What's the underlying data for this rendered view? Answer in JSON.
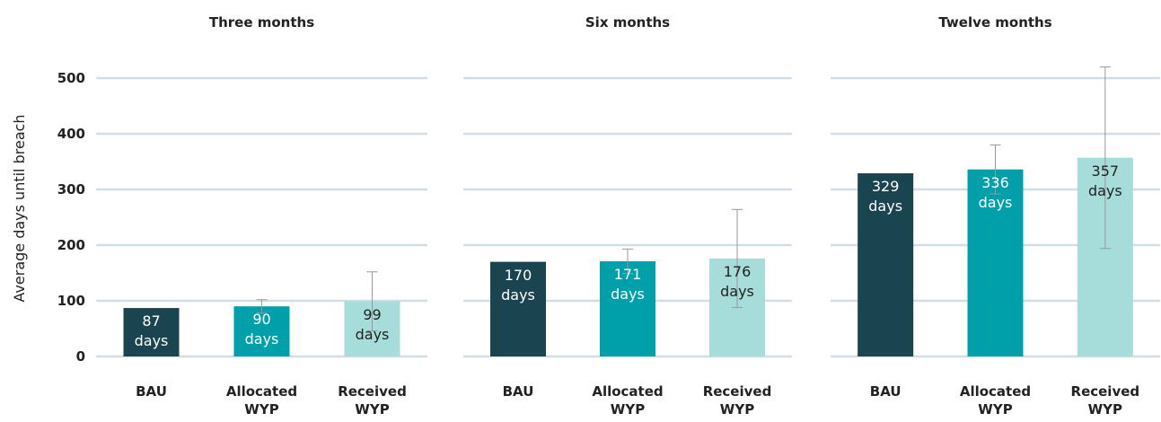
{
  "chart_data": [
    {
      "type": "bar",
      "title": "Three months",
      "ylabel": "Average days until breach",
      "categories": [
        "BAU",
        "Allocated WYP",
        "Received WYP"
      ],
      "values": [
        87,
        90,
        99
      ],
      "value_labels": [
        "87 days",
        "90 days",
        "99 days"
      ],
      "errors": [
        null,
        12,
        53
      ],
      "colors": [
        "#1b4451",
        "#00a0aa",
        "#a6dcd9"
      ],
      "ylim": [
        0,
        550
      ],
      "yticks": [
        0,
        100,
        200,
        300,
        400,
        500
      ],
      "grid": true
    },
    {
      "type": "bar",
      "title": "Six months",
      "categories": [
        "BAU",
        "Allocated WYP",
        "Received WYP"
      ],
      "values": [
        170,
        171,
        176
      ],
      "value_labels": [
        "170 days",
        "171 days",
        "176 days"
      ],
      "errors": [
        null,
        22,
        88
      ],
      "colors": [
        "#1b4451",
        "#00a0aa",
        "#a6dcd9"
      ],
      "ylim": [
        0,
        550
      ],
      "yticks": [
        0,
        100,
        200,
        300,
        400,
        500
      ],
      "grid": true
    },
    {
      "type": "bar",
      "title": "Twelve months",
      "categories": [
        "BAU",
        "Allocated WYP",
        "Received WYP"
      ],
      "values": [
        329,
        336,
        357
      ],
      "value_labels": [
        "329 days",
        "336 days",
        "357 days"
      ],
      "errors": [
        null,
        44,
        163
      ],
      "colors": [
        "#1b4451",
        "#00a0aa",
        "#a6dcd9"
      ],
      "ylim": [
        0,
        550
      ],
      "yticks": [
        0,
        100,
        200,
        300,
        400,
        500
      ],
      "grid": true
    }
  ]
}
